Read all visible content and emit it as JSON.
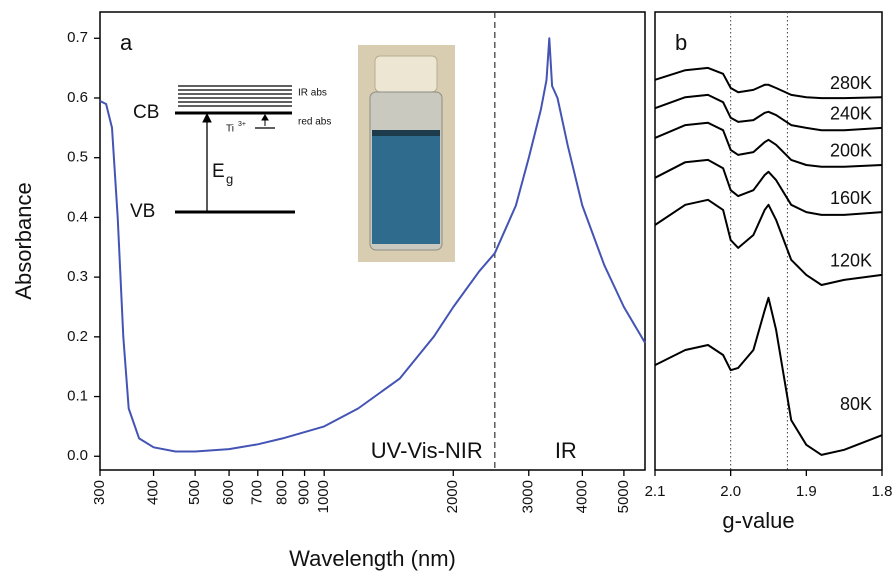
{
  "chart_data": [
    {
      "type": "line",
      "panel_label": "a",
      "xlabel": "Wavelength (nm)",
      "ylabel": "Absorbance",
      "xscale": "log",
      "color": "#4454b4",
      "x": [
        300,
        310,
        320,
        330,
        340,
        350,
        370,
        400,
        450,
        500,
        600,
        700,
        800,
        1000,
        1200,
        1500,
        1800,
        2000,
        2300,
        2500,
        2800,
        3000,
        3200,
        3300,
        3350,
        3400,
        3500,
        3700,
        4000,
        4500,
        5000,
        5600
      ],
      "values": [
        0.595,
        0.59,
        0.55,
        0.4,
        0.2,
        0.08,
        0.03,
        0.015,
        0.008,
        0.008,
        0.012,
        0.02,
        0.03,
        0.05,
        0.08,
        0.13,
        0.2,
        0.25,
        0.31,
        0.34,
        0.42,
        0.5,
        0.58,
        0.63,
        0.7,
        0.62,
        0.6,
        0.52,
        0.42,
        0.32,
        0.25,
        0.19
      ],
      "xlim": [
        300,
        5600
      ],
      "ylim": [
        -0.023,
        0.744
      ],
      "xticks": [
        300,
        400,
        500,
        600,
        700,
        800,
        900,
        1000,
        2000,
        3000,
        4000,
        5000
      ],
      "yticks": [
        {
          "value": 0,
          "label": "0.0"
        },
        0.1,
        0.2,
        0.3,
        0.4,
        0.5,
        0.6,
        0.7
      ],
      "divider": 2500,
      "region_labels": [
        "UV-Vis-NIR",
        "IR"
      ],
      "inset_labels": {
        "cb": "CB",
        "vb": "VB",
        "eg": "E",
        "eg_sub": "g",
        "ti": "Ti",
        "ti_sup": "3+",
        "ir_abs": "IR abs",
        "red_abs": "red abs"
      }
    },
    {
      "type": "line",
      "panel_label": "b",
      "xlabel": "g-value",
      "x": [
        2.1,
        2.06,
        2.03,
        2.01,
        2.0,
        1.99,
        1.97,
        1.955,
        1.95,
        1.94,
        1.92,
        1.9,
        1.88,
        1.85,
        1.8
      ],
      "xlim": [
        2.1,
        1.8
      ],
      "ylim": [
        0,
        1
      ],
      "xticks": [
        2.1,
        {
          "value": 2,
          "label": "2.0"
        },
        1.9,
        1.8
      ],
      "markers": [
        2,
        1.925
      ],
      "series": [
        {
          "name": "280K",
          "color": "#000000",
          "values": [
            0.852,
            0.873,
            0.878,
            0.865,
            0.834,
            0.825,
            0.83,
            0.841,
            0.841,
            0.834,
            0.819,
            0.814,
            0.812,
            0.812,
            0.814
          ]
        },
        {
          "name": "240K",
          "color": "#000000",
          "values": [
            0.79,
            0.814,
            0.819,
            0.803,
            0.769,
            0.76,
            0.764,
            0.78,
            0.782,
            0.775,
            0.753,
            0.747,
            0.742,
            0.742,
            0.747
          ]
        },
        {
          "name": "200K",
          "color": "#000000",
          "values": [
            0.725,
            0.753,
            0.758,
            0.742,
            0.699,
            0.688,
            0.694,
            0.716,
            0.721,
            0.71,
            0.677,
            0.666,
            0.662,
            0.662,
            0.666
          ]
        },
        {
          "name": "160K",
          "color": "#000000",
          "values": [
            0.638,
            0.672,
            0.677,
            0.659,
            0.611,
            0.598,
            0.611,
            0.644,
            0.651,
            0.633,
            0.579,
            0.563,
            0.557,
            0.557,
            0.563
          ]
        },
        {
          "name": "120K",
          "color": "#000000",
          "values": [
            0.535,
            0.579,
            0.59,
            0.568,
            0.502,
            0.485,
            0.513,
            0.568,
            0.579,
            0.546,
            0.459,
            0.426,
            0.404,
            0.415,
            0.426
          ]
        },
        {
          "name": "80K",
          "color": "#000000",
          "values": [
            0.229,
            0.262,
            0.273,
            0.251,
            0.218,
            0.223,
            0.262,
            0.349,
            0.376,
            0.306,
            0.109,
            0.055,
            0.033,
            0.044,
            0.076
          ]
        }
      ]
    }
  ]
}
